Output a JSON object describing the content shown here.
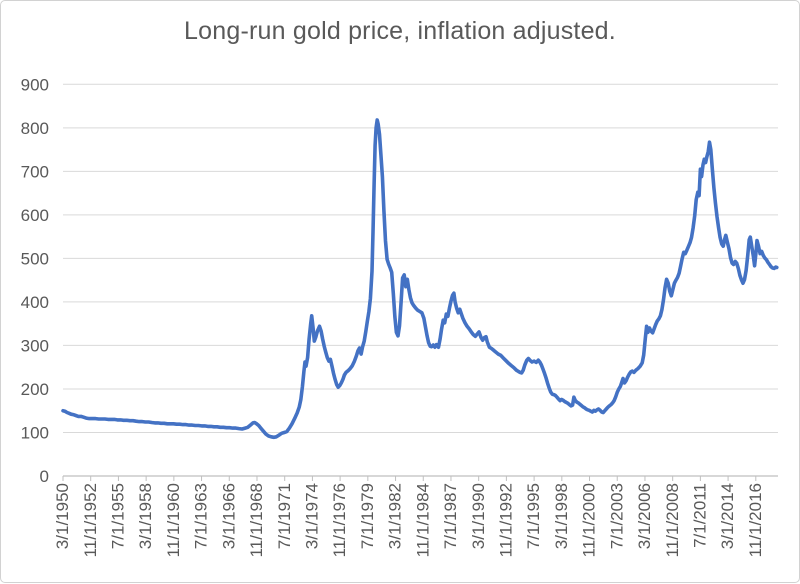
{
  "title": "Long-run gold price, inflation adjusted.",
  "colors": {
    "series_line": "#4472C4",
    "gridline": "#D9D9D9",
    "axis_line": "#BFBFBF",
    "label_text": "#595959",
    "title_text": "#595959",
    "background": "#FFFFFF",
    "chart_border": "#D2D2D2"
  },
  "chart_data": {
    "type": "line",
    "title": "Long-run gold price, inflation adjusted.",
    "xlabel": "",
    "ylabel": "",
    "legend": "none",
    "grid": "horizontal-only",
    "ylim": [
      0,
      900
    ],
    "y_ticks": [
      0,
      100,
      200,
      300,
      400,
      500,
      600,
      700,
      800,
      900
    ],
    "x_tick_labels": [
      "3/1/1950",
      "11/1/1952",
      "7/1/1955",
      "3/1/1958",
      "11/1/1960",
      "7/1/1963",
      "3/1/1966",
      "11/1/1968",
      "7/1/1971",
      "3/1/1974",
      "11/1/1976",
      "7/1/1979",
      "3/1/1982",
      "11/1/1984",
      "7/1/1987",
      "3/1/1990",
      "11/1/1992",
      "7/1/1995",
      "3/1/1998",
      "11/1/2000",
      "7/1/2003",
      "3/1/2006",
      "11/1/2008",
      "7/1/2011",
      "3/1/2014",
      "11/1/2016"
    ],
    "x_tick_interval_months": 32,
    "x_unit": "decimal_year",
    "x_range": [
      1950.17,
      2018.9
    ],
    "series": [
      {
        "x": [
          1950.17,
          1950.35,
          1950.55,
          1950.75,
          1950.95,
          1951.15,
          1951.4,
          1951.65,
          1951.9,
          1952.15,
          1952.4,
          1952.7,
          1953.0,
          1953.3,
          1953.6,
          1953.9,
          1954.2,
          1954.5,
          1954.8,
          1955.1,
          1955.4,
          1955.7,
          1956.0,
          1956.3,
          1956.6,
          1956.9,
          1957.2,
          1957.5,
          1957.8,
          1958.1,
          1958.4,
          1958.7,
          1959.0,
          1959.3,
          1959.6,
          1959.9,
          1960.2,
          1960.5,
          1960.8,
          1961.1,
          1961.4,
          1961.7,
          1962.0,
          1962.3,
          1962.6,
          1962.9,
          1963.2,
          1963.5,
          1963.8,
          1964.1,
          1964.4,
          1964.7,
          1965.0,
          1965.3,
          1965.6,
          1965.9,
          1966.2,
          1966.5,
          1966.8,
          1967.1,
          1967.4,
          1967.7,
          1967.95,
          1968.2,
          1968.45,
          1968.6,
          1968.8,
          1969.0,
          1969.2,
          1969.45,
          1969.7,
          1969.95,
          1970.2,
          1970.45,
          1970.7,
          1970.95,
          1971.2,
          1971.45,
          1971.7,
          1971.95,
          1972.2,
          1972.45,
          1972.7,
          1972.9,
          1973.05,
          1973.2,
          1973.35,
          1973.45,
          1973.55,
          1973.7,
          1973.85,
          1974.0,
          1974.1,
          1974.22,
          1974.35,
          1974.5,
          1974.65,
          1974.85,
          1975.0,
          1975.15,
          1975.3,
          1975.45,
          1975.6,
          1975.75,
          1975.9,
          1976.05,
          1976.2,
          1976.35,
          1976.5,
          1976.65,
          1976.8,
          1976.95,
          1977.1,
          1977.25,
          1977.4,
          1977.6,
          1977.8,
          1978.0,
          1978.2,
          1978.4,
          1978.55,
          1978.7,
          1978.85,
          1979.0,
          1979.15,
          1979.3,
          1979.45,
          1979.6,
          1979.75,
          1979.9,
          1980.0,
          1980.1,
          1980.2,
          1980.3,
          1980.4,
          1980.5,
          1980.62,
          1980.75,
          1980.9,
          1981.05,
          1981.2,
          1981.35,
          1981.5,
          1981.65,
          1981.8,
          1981.95,
          1982.1,
          1982.25,
          1982.4,
          1982.55,
          1982.7,
          1982.85,
          1983.0,
          1983.15,
          1983.3,
          1983.45,
          1983.6,
          1983.75,
          1983.9,
          1984.1,
          1984.3,
          1984.5,
          1984.7,
          1984.9,
          1985.05,
          1985.2,
          1985.35,
          1985.5,
          1985.65,
          1985.8,
          1985.95,
          1986.1,
          1986.3,
          1986.45,
          1986.6,
          1986.75,
          1986.9,
          1987.05,
          1987.2,
          1987.35,
          1987.5,
          1987.65,
          1987.78,
          1987.9,
          1988.05,
          1988.2,
          1988.35,
          1988.5,
          1988.65,
          1988.85,
          1989.05,
          1989.25,
          1989.45,
          1989.65,
          1989.85,
          1990.05,
          1990.2,
          1990.4,
          1990.55,
          1990.72,
          1990.87,
          1991.0,
          1991.2,
          1991.4,
          1991.6,
          1991.8,
          1992.05,
          1992.3,
          1992.55,
          1992.8,
          1993.05,
          1993.3,
          1993.55,
          1993.8,
          1994.0,
          1994.15,
          1994.3,
          1994.45,
          1994.6,
          1994.8,
          1994.95,
          1995.1,
          1995.3,
          1995.5,
          1995.7,
          1995.9,
          1996.05,
          1996.2,
          1996.35,
          1996.5,
          1996.65,
          1996.8,
          1996.95,
          1997.1,
          1997.25,
          1997.4,
          1997.55,
          1997.7,
          1997.85,
          1998.0,
          1998.15,
          1998.3,
          1998.45,
          1998.6,
          1998.75,
          1998.9,
          1999.05,
          1999.2,
          1999.33,
          1999.45,
          1999.6,
          1999.75,
          1999.9,
          2000.05,
          2000.2,
          2000.35,
          2000.5,
          2000.65,
          2000.8,
          2000.95,
          2001.1,
          2001.25,
          2001.4,
          2001.55,
          2001.7,
          2001.85,
          2002.0,
          2002.15,
          2002.3,
          2002.45,
          2002.6,
          2002.75,
          2002.9,
          2003.05,
          2003.2,
          2003.35,
          2003.5,
          2003.65,
          2003.8,
          2003.95,
          2004.05,
          2004.2,
          2004.35,
          2004.5,
          2004.65,
          2004.8,
          2004.95,
          2005.1,
          2005.3,
          2005.5,
          2005.7,
          2005.9,
          2006.05,
          2006.2,
          2006.33,
          2006.45,
          2006.6,
          2006.75,
          2006.9,
          2007.05,
          2007.2,
          2007.35,
          2007.5,
          2007.65,
          2007.8,
          2007.95,
          2008.1,
          2008.25,
          2008.4,
          2008.55,
          2008.7,
          2008.85,
          2009.0,
          2009.15,
          2009.3,
          2009.45,
          2009.6,
          2009.75,
          2009.9,
          2010.05,
          2010.2,
          2010.35,
          2010.5,
          2010.65,
          2010.8,
          2010.95,
          2011.1,
          2011.25,
          2011.38,
          2011.5,
          2011.62,
          2011.75,
          2011.88,
          2012.0,
          2012.12,
          2012.25,
          2012.38,
          2012.5,
          2012.65,
          2012.8,
          2012.95,
          2013.1,
          2013.25,
          2013.4,
          2013.55,
          2013.7,
          2013.85,
          2013.95,
          2014.1,
          2014.25,
          2014.4,
          2014.55,
          2014.7,
          2014.85,
          2015.0,
          2015.15,
          2015.3,
          2015.45,
          2015.6,
          2015.75,
          2015.9,
          2016.05,
          2016.2,
          2016.3,
          2016.45,
          2016.6,
          2016.72,
          2016.85,
          2016.95,
          2017.1,
          2017.25,
          2017.4,
          2017.55,
          2017.7,
          2017.85,
          2018.0,
          2018.15,
          2018.3,
          2018.45,
          2018.6,
          2018.75,
          2018.85
        ],
        "y": [
          150,
          149,
          146,
          144,
          142,
          141,
          139,
          137,
          137,
          135,
          133,
          132,
          132,
          132,
          131,
          131,
          131,
          130,
          130,
          130,
          129,
          129,
          128,
          128,
          127,
          127,
          126,
          125,
          125,
          124,
          124,
          123,
          122,
          122,
          121,
          121,
          120,
          120,
          120,
          119,
          119,
          118,
          118,
          117,
          117,
          116,
          116,
          115,
          115,
          114,
          114,
          113,
          113,
          112,
          112,
          111,
          111,
          110,
          110,
          109,
          108,
          110,
          112,
          117,
          122,
          123,
          120,
          116,
          110,
          103,
          96,
          92,
          90,
          89,
          90,
          94,
          98,
          100,
          102,
          110,
          120,
          132,
          145,
          158,
          175,
          205,
          240,
          262,
          252,
          272,
          315,
          350,
          368,
          342,
          310,
          320,
          333,
          344,
          333,
          315,
          298,
          285,
          272,
          264,
          268,
          252,
          236,
          222,
          210,
          204,
          208,
          214,
          222,
          232,
          238,
          242,
          247,
          253,
          263,
          276,
          288,
          294,
          280,
          297,
          310,
          332,
          355,
          378,
          408,
          470,
          560,
          670,
          760,
          800,
          818,
          808,
          785,
          742,
          688,
          610,
          540,
          498,
          487,
          478,
          468,
          420,
          365,
          330,
          322,
          345,
          400,
          455,
          462,
          435,
          452,
          428,
          410,
          398,
          392,
          386,
          381,
          378,
          375,
          362,
          342,
          322,
          306,
          298,
          297,
          301,
          296,
          302,
          296,
          315,
          338,
          358,
          352,
          372,
          367,
          385,
          402,
          415,
          420,
          400,
          385,
          375,
          383,
          372,
          362,
          352,
          344,
          338,
          331,
          325,
          321,
          327,
          331,
          318,
          312,
          318,
          320,
          308,
          296,
          293,
          289,
          285,
          280,
          277,
          271,
          265,
          259,
          254,
          249,
          243,
          240,
          238,
          237,
          243,
          255,
          266,
          270,
          266,
          262,
          264,
          261,
          266,
          262,
          255,
          246,
          236,
          225,
          213,
          202,
          193,
          188,
          187,
          185,
          181,
          177,
          173,
          176,
          174,
          171,
          169,
          167,
          164,
          161,
          163,
          181,
          174,
          170,
          168,
          165,
          162,
          159,
          157,
          154,
          152,
          151,
          149,
          147,
          151,
          149,
          152,
          154,
          151,
          147,
          146,
          150,
          154,
          158,
          161,
          164,
          168,
          173,
          182,
          192,
          200,
          206,
          216,
          224,
          214,
          219,
          227,
          234,
          239,
          241,
          238,
          243,
          247,
          252,
          260,
          278,
          316,
          344,
          330,
          340,
          333,
          329,
          338,
          348,
          356,
          361,
          368,
          382,
          405,
          432,
          452,
          443,
          425,
          414,
          428,
          443,
          450,
          456,
          466,
          482,
          500,
          514,
          511,
          519,
          527,
          536,
          548,
          570,
          598,
          635,
          652,
          644,
          705,
          688,
          715,
          728,
          720,
          733,
          745,
          767,
          750,
          706,
          662,
          628,
          596,
          570,
          548,
          533,
          528,
          545,
          553,
          537,
          522,
          502,
          489,
          486,
          493,
          489,
          477,
          461,
          451,
          443,
          451,
          472,
          506,
          543,
          549,
          527,
          504,
          483,
          514,
          541,
          527,
          511,
          516,
          507,
          501,
          497,
          491,
          486,
          481,
          478,
          477,
          480,
          479
        ]
      }
    ]
  }
}
